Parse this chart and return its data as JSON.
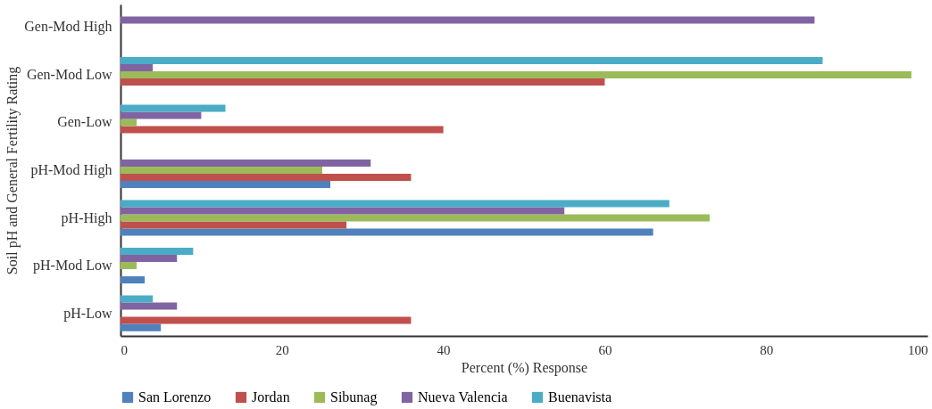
{
  "chart_data": {
    "type": "bar",
    "orientation": "horizontal",
    "xlabel": "Percent (%) Response",
    "ylabel": "Soil pH and General Fertility Rating",
    "categories": [
      "Gen-Mod High",
      "Gen-Mod  Low",
      "Gen-Low",
      "pH-Mod High",
      "pH-High",
      "pH-Mod Low",
      "pH-Low"
    ],
    "series": [
      {
        "name": "San Lorenzo",
        "color": "#4f81bd",
        "values": [
          0,
          0,
          0,
          26,
          66,
          3,
          5
        ]
      },
      {
        "name": "Jordan",
        "color": "#c0504d",
        "values": [
          0,
          60,
          40,
          36,
          28,
          0,
          36
        ]
      },
      {
        "name": "Sibunag",
        "color": "#9bbb59",
        "values": [
          0,
          98,
          2,
          25,
          73,
          2,
          0
        ]
      },
      {
        "name": "Nueva Valencia",
        "color": "#8064a2",
        "values": [
          86,
          4,
          10,
          31,
          55,
          7,
          7
        ]
      },
      {
        "name": "Buenavista",
        "color": "#4bacc6",
        "values": [
          0,
          87,
          13,
          0,
          68,
          9,
          4
        ]
      }
    ],
    "xlim": [
      0,
      100
    ],
    "xticks": [
      0,
      20,
      40,
      60,
      80,
      100
    ],
    "grid": false,
    "legend": "bottom"
  }
}
